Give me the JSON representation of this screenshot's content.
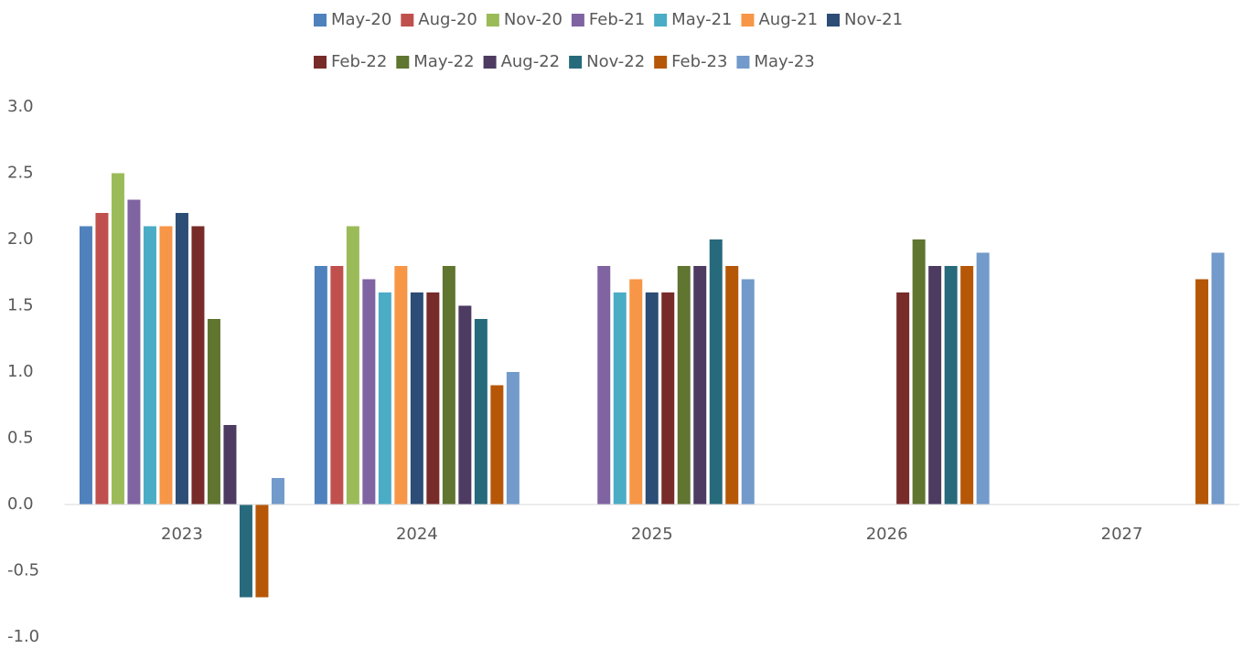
{
  "chart_data": {
    "type": "bar",
    "categories": [
      "2023",
      "2024",
      "2025",
      "2026",
      "2027"
    ],
    "series": [
      {
        "name": "May-20",
        "color": "#4f81bd",
        "values": [
          2.1,
          1.8,
          null,
          null,
          null
        ]
      },
      {
        "name": "Aug-20",
        "color": "#c0504d",
        "values": [
          2.2,
          1.8,
          null,
          null,
          null
        ]
      },
      {
        "name": "Nov-20",
        "color": "#9bbb59",
        "values": [
          2.5,
          2.1,
          null,
          null,
          null
        ]
      },
      {
        "name": "Feb-21",
        "color": "#8064a2",
        "values": [
          2.3,
          1.7,
          1.8,
          null,
          null
        ]
      },
      {
        "name": "May-21",
        "color": "#4bacc6",
        "values": [
          2.1,
          1.6,
          1.6,
          null,
          null
        ]
      },
      {
        "name": "Aug-21",
        "color": "#f79646",
        "values": [
          2.1,
          1.8,
          1.7,
          null,
          null
        ]
      },
      {
        "name": "Nov-21",
        "color": "#2c4d75",
        "values": [
          2.2,
          1.6,
          1.6,
          null,
          null
        ]
      },
      {
        "name": "Feb-22",
        "color": "#772c2a",
        "values": [
          2.1,
          1.6,
          1.6,
          1.6,
          null
        ]
      },
      {
        "name": "May-22",
        "color": "#5f7530",
        "values": [
          1.4,
          1.8,
          1.8,
          2.0,
          null
        ]
      },
      {
        "name": "Aug-22",
        "color": "#4d3b62",
        "values": [
          0.6,
          1.5,
          1.8,
          1.8,
          null
        ]
      },
      {
        "name": "Nov-22",
        "color": "#276a7c",
        "values": [
          -0.7,
          1.4,
          2.0,
          1.8,
          null
        ]
      },
      {
        "name": "Feb-23",
        "color": "#b65708",
        "values": [
          -0.7,
          0.9,
          1.8,
          1.8,
          1.7
        ]
      },
      {
        "name": "May-23",
        "color": "#729aca",
        "values": [
          0.2,
          1.0,
          1.7,
          1.9,
          1.9
        ]
      }
    ],
    "ylim": [
      -1,
      3
    ],
    "yticks": [
      {
        "value": -1,
        "label": "-1.0"
      },
      {
        "value": -0.5,
        "label": "-0.5"
      },
      {
        "value": 0,
        "label": "0.0"
      },
      {
        "value": 0.5,
        "label": "0.5"
      },
      {
        "value": 1,
        "label": "1.0"
      },
      {
        "value": 1.5,
        "label": "1.5"
      },
      {
        "value": 2,
        "label": "2.0"
      },
      {
        "value": 2.5,
        "label": "2.5"
      },
      {
        "value": 3,
        "label": "3.0"
      }
    ],
    "grid": false,
    "legend": "top"
  }
}
